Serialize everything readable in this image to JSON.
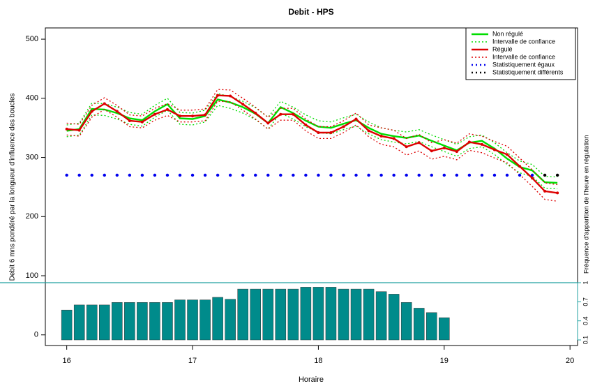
{
  "chart_data": {
    "type": "line",
    "title": "Debit - HPS",
    "x_label": "Horaire",
    "y_label": "Debit 6 mns pondéré par la longueur d'influence des boucles",
    "y2_label": "Fréquence d'apparition de l'heure en régulation",
    "x": [
      16.0,
      16.1,
      16.2,
      16.3,
      16.4,
      16.5,
      16.6,
      16.7,
      16.8,
      16.9,
      17.0,
      17.1,
      17.2,
      17.3,
      17.4,
      17.5,
      17.6,
      17.7,
      17.8,
      17.9,
      18.0,
      18.1,
      18.2,
      18.3,
      18.4,
      18.5,
      18.6,
      18.7,
      18.8,
      18.9,
      19.0,
      19.1,
      19.2,
      19.3,
      19.4,
      19.5,
      19.6,
      19.7,
      19.8,
      19.9
    ],
    "series": [
      {
        "name": "Non régulé",
        "color": "#00dd00",
        "ci_name": "Intervalle de confiance",
        "values": [
          345,
          348,
          382,
          381,
          375,
          366,
          363,
          378,
          390,
          366,
          365,
          370,
          398,
          393,
          385,
          374,
          358,
          385,
          375,
          362,
          352,
          350,
          357,
          363,
          350,
          340,
          336,
          333,
          337,
          328,
          320,
          312,
          325,
          328,
          315,
          298,
          284,
          278,
          258,
          257
        ],
        "ci_lower": [
          335,
          338,
          372,
          371,
          365,
          356,
          353,
          368,
          380,
          356,
          355,
          360,
          388,
          383,
          375,
          364,
          348,
          375,
          365,
          352,
          342,
          340,
          347,
          353,
          340,
          330,
          326,
          323,
          327,
          318,
          310,
          302,
          315,
          318,
          305,
          288,
          274,
          268,
          248,
          247
        ],
        "ci_upper": [
          355,
          358,
          392,
          391,
          385,
          376,
          373,
          388,
          400,
          376,
          375,
          380,
          408,
          403,
          395,
          384,
          368,
          395,
          385,
          372,
          362,
          360,
          367,
          373,
          360,
          350,
          346,
          343,
          347,
          338,
          330,
          322,
          335,
          338,
          325,
          308,
          294,
          288,
          268,
          267
        ]
      },
      {
        "name": "Régulé",
        "color": "#dd0000",
        "ci_name": "Intervalle de confiance",
        "markers": true,
        "values": [
          348,
          346,
          378,
          391,
          378,
          362,
          360,
          373,
          381,
          370,
          370,
          372,
          405,
          404,
          390,
          375,
          358,
          373,
          373,
          355,
          342,
          342,
          352,
          365,
          345,
          336,
          332,
          318,
          325,
          311,
          316,
          310,
          326,
          322,
          313,
          305,
          285,
          265,
          243,
          240
        ],
        "ci_lower": [
          338,
          336,
          368,
          381,
          368,
          352,
          350,
          363,
          371,
          360,
          360,
          362,
          395,
          394,
          380,
          365,
          348,
          363,
          363,
          345,
          332,
          332,
          342,
          355,
          335,
          322,
          318,
          304,
          311,
          297,
          302,
          296,
          312,
          308,
          299,
          291,
          271,
          251,
          229,
          226
        ],
        "ci_upper": [
          358,
          356,
          388,
          401,
          388,
          372,
          370,
          383,
          391,
          380,
          380,
          382,
          415,
          414,
          400,
          385,
          368,
          383,
          383,
          365,
          352,
          352,
          362,
          375,
          355,
          350,
          346,
          332,
          339,
          325,
          330,
          324,
          340,
          336,
          327,
          319,
          299,
          279,
          257,
          254
        ]
      },
      {
        "name": "Statistiquement égaux",
        "color": "#0000ee",
        "style": "points",
        "values": [
          270,
          270,
          270,
          270,
          270,
          270,
          270,
          270,
          270,
          270,
          270,
          270,
          270,
          270,
          270,
          270,
          270,
          270,
          270,
          270,
          270,
          270,
          270,
          270,
          270,
          270,
          270,
          270,
          270,
          270,
          270,
          270,
          270,
          270,
          270,
          270,
          270,
          270,
          null,
          null
        ]
      },
      {
        "name": "Statistiquement différents",
        "color": "#000000",
        "style": "points",
        "values": [
          null,
          null,
          null,
          null,
          null,
          null,
          null,
          null,
          null,
          null,
          null,
          null,
          null,
          null,
          null,
          null,
          null,
          null,
          null,
          null,
          null,
          null,
          null,
          null,
          null,
          null,
          null,
          null,
          null,
          null,
          null,
          null,
          null,
          null,
          null,
          null,
          null,
          null,
          270,
          270
        ]
      }
    ],
    "bars": {
      "color": "#008b8b",
      "axis": "y2",
      "x": [
        16.0,
        16.1,
        16.2,
        16.3,
        16.4,
        16.5,
        16.6,
        16.7,
        16.8,
        16.9,
        17.0,
        17.1,
        17.2,
        17.3,
        17.4,
        17.5,
        17.6,
        17.7,
        17.8,
        17.9,
        18.0,
        18.1,
        18.2,
        18.3,
        18.4,
        18.5,
        18.6,
        18.7,
        18.8,
        18.9,
        19.0
      ],
      "values": [
        0.57,
        0.65,
        0.65,
        0.65,
        0.69,
        0.69,
        0.69,
        0.69,
        0.69,
        0.73,
        0.73,
        0.73,
        0.77,
        0.74,
        0.9,
        0.9,
        0.9,
        0.9,
        0.9,
        0.93,
        0.93,
        0.93,
        0.9,
        0.9,
        0.9,
        0.86,
        0.82,
        0.69,
        0.6,
        0.53,
        0.45
      ]
    },
    "xlim": [
      15.83,
      20.06
    ],
    "xticks": [
      16,
      17,
      18,
      19,
      20
    ],
    "ylim": [
      -18,
      519
    ],
    "yticks": [
      0,
      100,
      200,
      300,
      400,
      500
    ],
    "y2lim": [
      0.1,
      1.0
    ],
    "y2ticks": [
      0.1,
      0.4,
      0.7,
      1.0
    ],
    "y2_color": "#20a0a0",
    "legend": "top-right"
  }
}
